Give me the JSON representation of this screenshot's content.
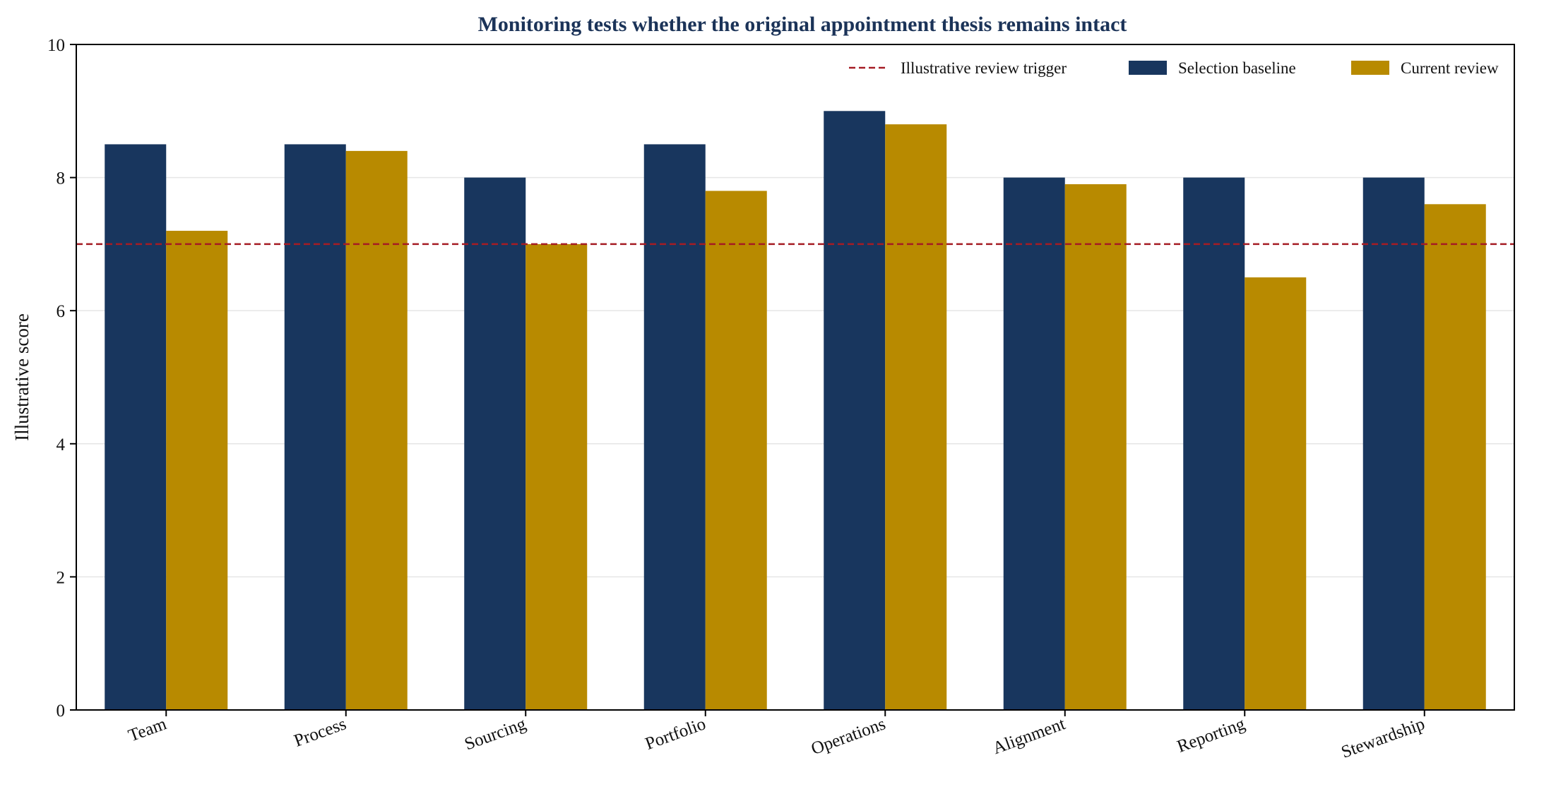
{
  "chart_data": {
    "type": "bar",
    "title": "Monitoring tests whether the original appointment thesis remains intact",
    "xlabel": "",
    "ylabel": "Illustrative score",
    "ylim": [
      0,
      10
    ],
    "yticks": [
      "0",
      "2",
      "4",
      "6",
      "8",
      "10"
    ],
    "grid": "horizontal",
    "legend_position": "top-right",
    "categories": [
      "Team",
      "Process",
      "Sourcing",
      "Portfolio",
      "Operations",
      "Alignment",
      "Reporting",
      "Stewardship"
    ],
    "series": [
      {
        "name": "Selection baseline",
        "color": "#18365e",
        "values": [
          8.5,
          8.5,
          8.0,
          8.5,
          9.0,
          8.0,
          8.0,
          8.0
        ]
      },
      {
        "name": "Current review",
        "color": "#b88a00",
        "values": [
          7.2,
          8.4,
          7.0,
          7.8,
          8.8,
          7.9,
          6.5,
          7.6
        ]
      }
    ],
    "reference_line": {
      "name": "Illustrative review trigger",
      "value": 7,
      "color": "#a51c24",
      "style": "dashed"
    },
    "colors": {
      "title": "#1b3358",
      "axis": "#000000",
      "grid": "#e6e6e6"
    }
  }
}
